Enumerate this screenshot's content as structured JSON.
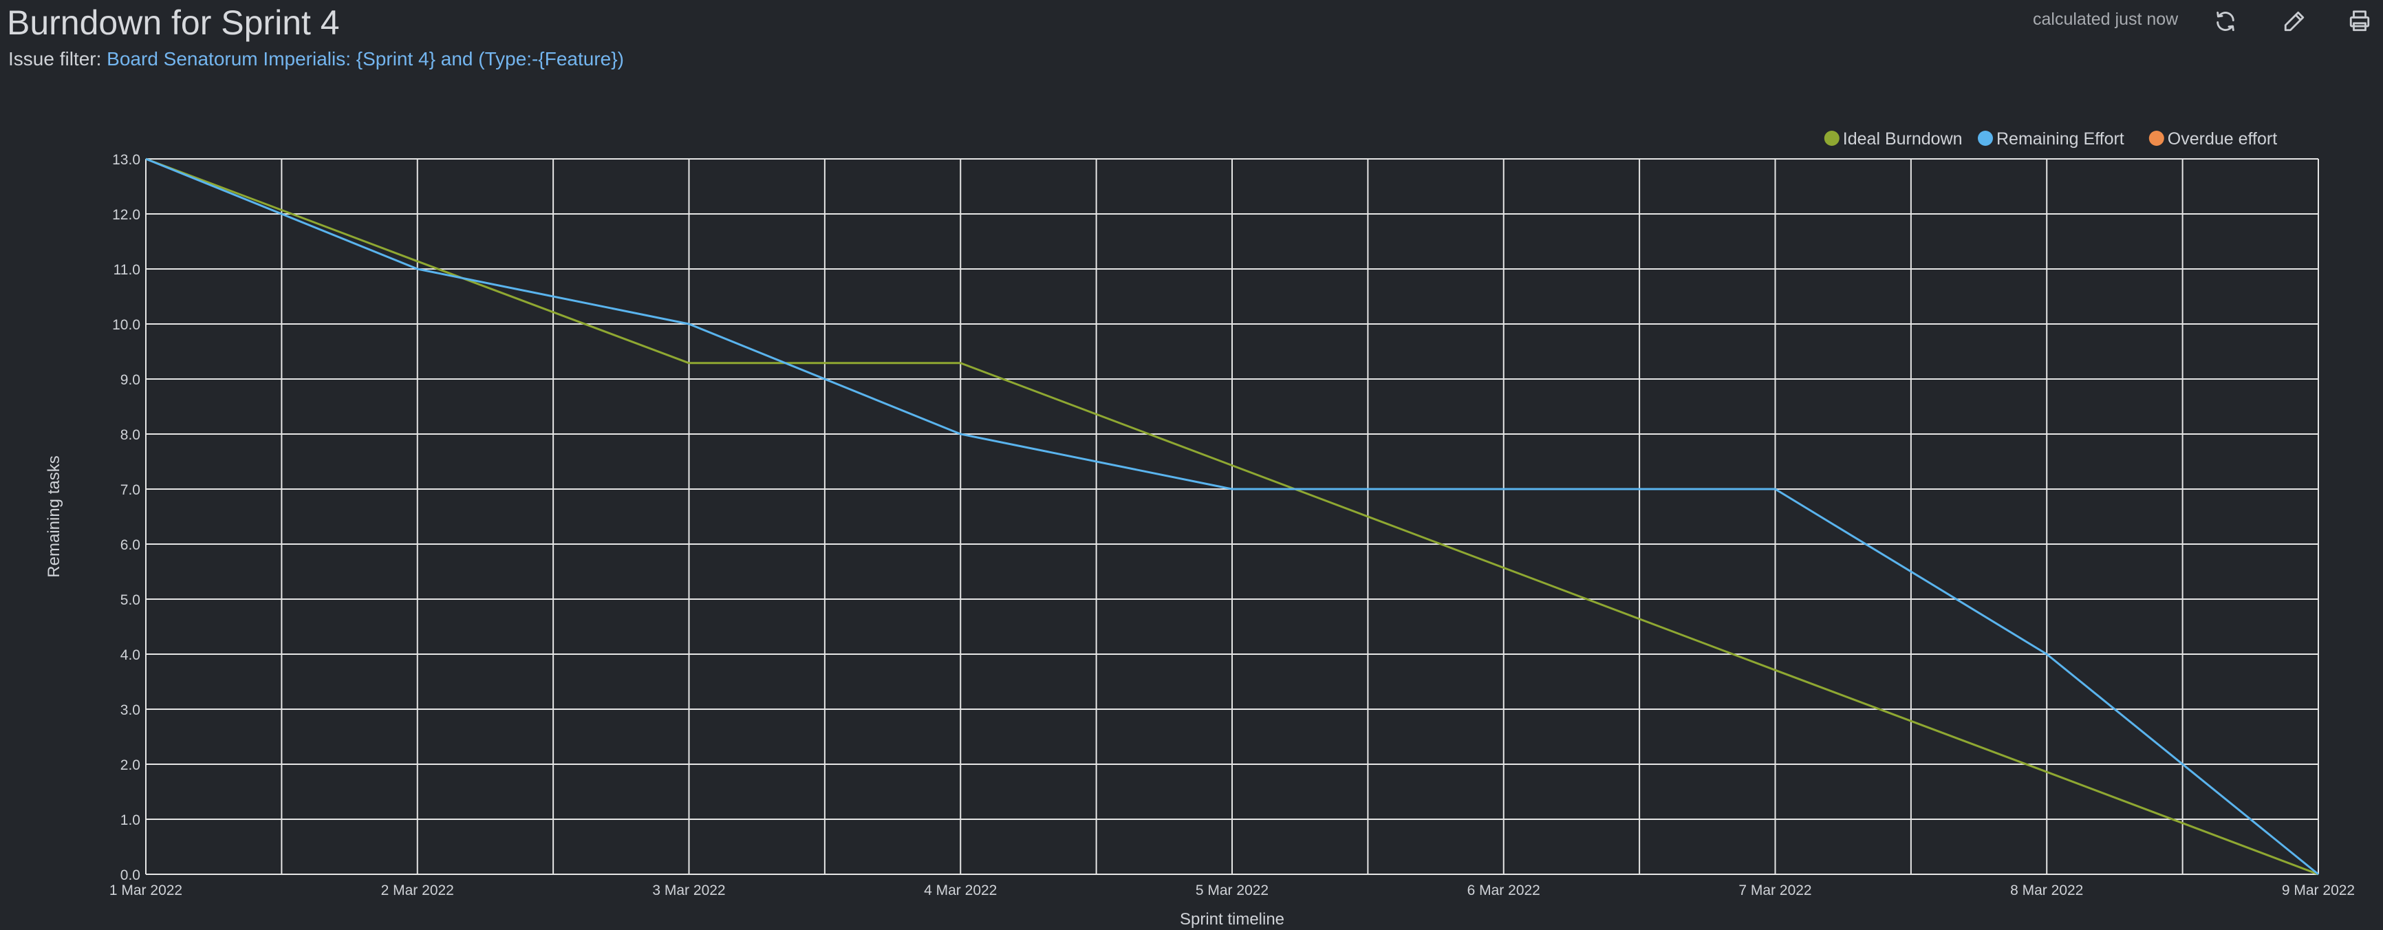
{
  "header": {
    "title": "Burndown for Sprint 4",
    "filter_label": "Issue filter:",
    "filter_value": "Board Senatorum Imperialis: {Sprint 4} and (Type:-{Feature})",
    "status": "calculated just now"
  },
  "toolbar": {
    "refresh_icon": "refresh-icon",
    "edit_icon": "pencil-icon",
    "print_icon": "printer-icon"
  },
  "colors": {
    "background": "#23262b",
    "grid": "#e6e6e6",
    "ideal": "#8fa832",
    "remaining": "#5ab4ee",
    "overdue": "#ef8c4b",
    "link": "#74b6f0"
  },
  "chart_data": {
    "type": "line",
    "xlabel": "Sprint timeline",
    "ylabel": "Remaining tasks",
    "ylim": [
      0,
      13
    ],
    "y_ticks": [
      "0.0",
      "1.0",
      "2.0",
      "3.0",
      "4.0",
      "5.0",
      "6.0",
      "7.0",
      "8.0",
      "9.0",
      "10.0",
      "11.0",
      "12.0",
      "13.0"
    ],
    "x_ticks": [
      "1 Mar 2022",
      "2 Mar 2022",
      "3 Mar 2022",
      "4 Mar 2022",
      "5 Mar 2022",
      "6 Mar 2022",
      "7 Mar 2022",
      "8 Mar 2022",
      "9 Mar 2022"
    ],
    "grid": true,
    "legend_position": "top-right",
    "series": [
      {
        "name": "Ideal Burndown",
        "color": "#8fa832",
        "x": [
          "1 Mar 2022",
          "2 Mar 2022",
          "3 Mar 2022",
          "4 Mar 2022",
          "5 Mar 2022",
          "6 Mar 2022",
          "7 Mar 2022",
          "8 Mar 2022",
          "9 Mar 2022"
        ],
        "values": [
          13.0,
          11.14,
          9.29,
          9.29,
          7.43,
          5.57,
          3.71,
          1.86,
          0.0
        ]
      },
      {
        "name": "Remaining Effort",
        "color": "#5ab4ee",
        "x": [
          "1 Mar 2022",
          "2 Mar 2022",
          "3 Mar 2022",
          "4 Mar 2022",
          "5 Mar 2022",
          "6 Mar 2022",
          "7 Mar 2022",
          "8 Mar 2022",
          "9 Mar 2022"
        ],
        "values": [
          13,
          11,
          10,
          8,
          7,
          7,
          7,
          4,
          0
        ]
      },
      {
        "name": "Overdue effort",
        "color": "#ef8c4b",
        "x": [],
        "values": []
      }
    ]
  }
}
